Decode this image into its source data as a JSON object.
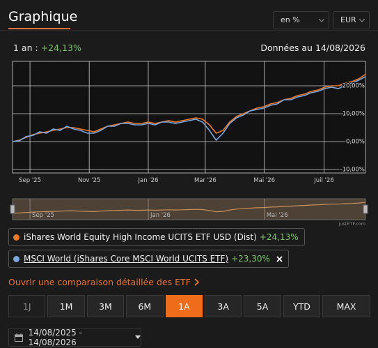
{
  "header": {
    "title": "Graphique",
    "selects": [
      "en %",
      "EUR"
    ]
  },
  "summary": {
    "period": "1 an :",
    "change": "+24,13%",
    "date": "Données au 14/08/2026"
  },
  "chart_data": {
    "type": "line",
    "x": [
      0,
      1,
      2,
      3,
      4,
      5,
      6,
      7,
      8,
      9,
      10,
      11,
      12,
      13,
      14,
      15,
      16,
      17,
      18,
      19,
      20,
      21,
      22,
      23,
      24,
      25,
      26,
      27,
      28,
      29,
      30,
      31,
      32,
      33,
      34,
      35,
      36,
      37,
      38,
      39,
      40,
      41,
      42,
      43,
      44,
      45,
      46,
      47,
      48,
      49,
      50,
      51,
      52
    ],
    "series": [
      {
        "name": "iShares World Equity High Income UCITS ETF USD (Dist)",
        "color": "#e8782a",
        "values": [
          0,
          0.5,
          1.5,
          2.5,
          3,
          3.5,
          4,
          4.5,
          5,
          5,
          4.5,
          4,
          3.5,
          4.5,
          5.5,
          6,
          6.5,
          7,
          6.5,
          6.5,
          7,
          6.5,
          7,
          7.5,
          7,
          7.5,
          8,
          8.5,
          8,
          6,
          3,
          4,
          7,
          9,
          10,
          11,
          12,
          12.5,
          13.5,
          14,
          15,
          15.5,
          16.5,
          17,
          18,
          18.5,
          19.5,
          20,
          20,
          21,
          21.5,
          22.5,
          24.13
        ]
      },
      {
        "name": "MSCI World (iShares Core MSCI World UCITS ETF)",
        "color": "#7aa7e0",
        "values": [
          0,
          0.3,
          1.8,
          2.2,
          3.5,
          3,
          4.5,
          4,
          5.5,
          4.5,
          4,
          3,
          3,
          4,
          5.5,
          5.5,
          6.5,
          6.5,
          6,
          6,
          6.5,
          6,
          7,
          7,
          6.5,
          7,
          7.5,
          8,
          7,
          4,
          0.5,
          3,
          6.5,
          8.5,
          9.5,
          11,
          11.5,
          12,
          13,
          13.5,
          15,
          15,
          16,
          16.5,
          17.5,
          18,
          19,
          19.5,
          19,
          20,
          21,
          22,
          23.3
        ]
      }
    ],
    "xlim": [
      0,
      52
    ],
    "ylim": [
      -11.25,
      28.75
    ],
    "xticks": [
      {
        "value": 2.57,
        "label": "Sep '25"
      },
      {
        "value": 11.3,
        "label": "Nov '25"
      },
      {
        "value": 20,
        "label": "Jan '26"
      },
      {
        "value": 28.4,
        "label": "Mar '26"
      },
      {
        "value": 37.1,
        "label": "Mai '26"
      },
      {
        "value": 45.9,
        "label": "Juil '26"
      }
    ],
    "yticks": [
      {
        "value": -10,
        "label": "-10,00%"
      },
      {
        "value": 0,
        "label": "0,00%"
      },
      {
        "value": 10,
        "label": "10,00%"
      },
      {
        "value": 20,
        "label": "20,00%"
      }
    ],
    "grid": true
  },
  "navigator": {
    "labels": [
      "Sep '25",
      "Jan '26",
      "Mai '26"
    ],
    "credit": "justETF.com"
  },
  "legend": [
    {
      "change": "+24,13%"
    },
    {
      "change": "+23,30%"
    }
  ],
  "link": "Ouvrir une comparaison détaillée des ETF",
  "periods": [
    "1J",
    "1M",
    "3M",
    "6M",
    "1A",
    "3A",
    "5A",
    "YTD",
    "MAX"
  ],
  "active_period": "1A",
  "date_range": "14/08/2025 - 14/08/2026"
}
